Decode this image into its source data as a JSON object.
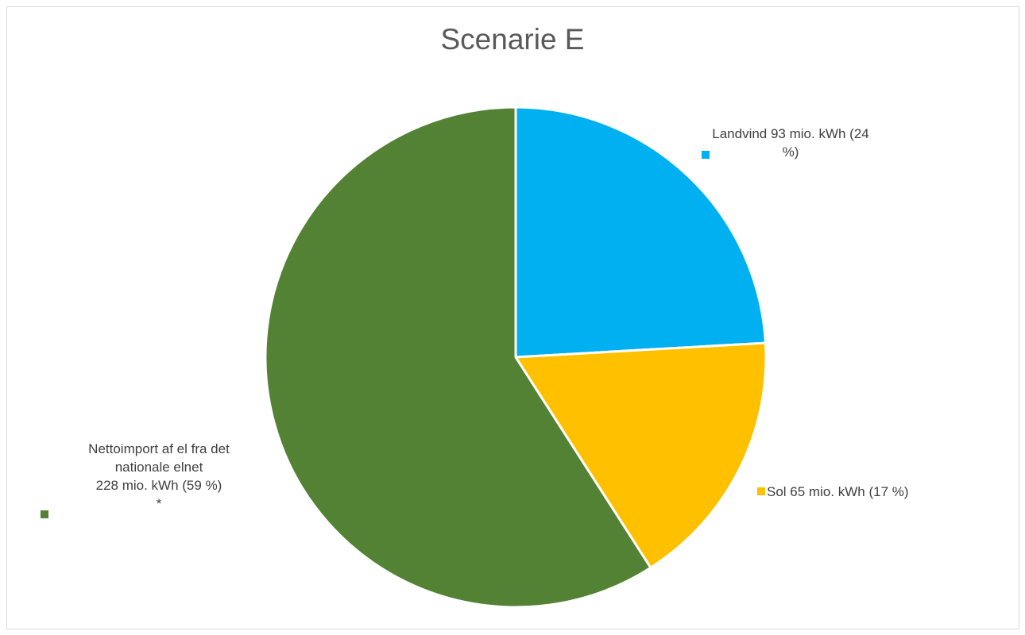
{
  "chart_data": {
    "type": "pie",
    "title": "Scenarie E",
    "slices": [
      {
        "label_lines": [
          "Landvind 93 mio. kWh (24",
          "%)"
        ],
        "value": 93,
        "percent": 24,
        "color": "#00b0f0"
      },
      {
        "label_lines": [
          "Sol 65 mio. kWh (17 %)"
        ],
        "value": 65,
        "percent": 17,
        "color": "#ffc000"
      },
      {
        "label_lines": [
          "Nettoimport af el fra det",
          "nationale elnet",
          "228 mio. kWh (59 %)",
          "*"
        ],
        "value": 228,
        "percent": 59,
        "color": "#548235"
      }
    ],
    "start_angle_deg": 0,
    "direction": "clockwise",
    "border_color": "#ffffff"
  }
}
